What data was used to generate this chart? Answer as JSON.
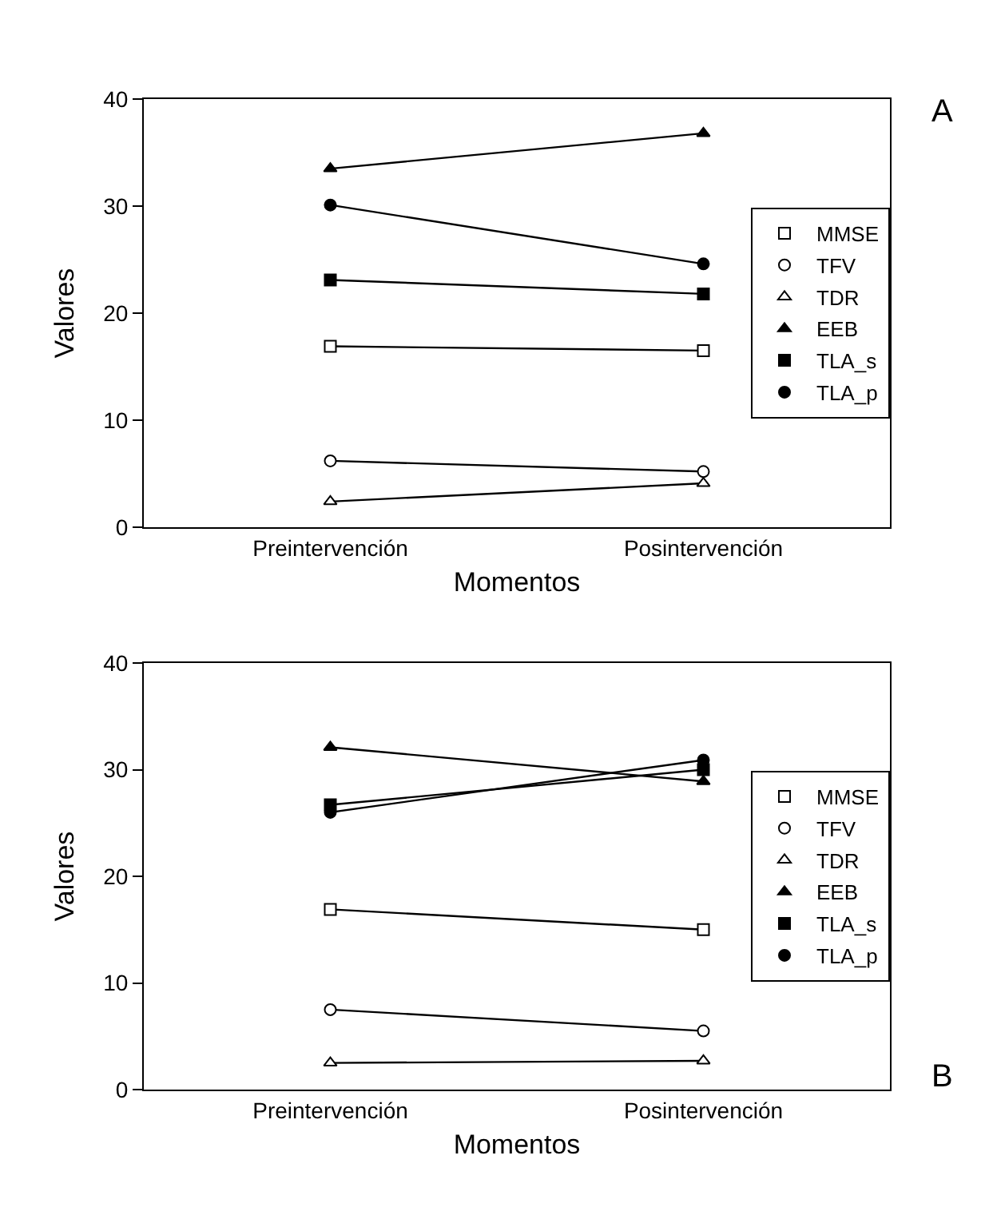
{
  "chart_data": [
    {
      "type": "line",
      "xlabel": "Momentos",
      "ylabel": "Valores",
      "categories": [
        "Preintervención",
        "Posintervención"
      ],
      "ylim": [
        0,
        40
      ],
      "yticks": [
        0,
        10,
        20,
        30,
        40
      ],
      "grid": false,
      "legend": "right",
      "annotations": [
        "A"
      ],
      "series": [
        {
          "name": "MMSE",
          "color": "#000000",
          "colors": [
            "#ffffff",
            "#ffffff"
          ],
          "marker": "square",
          "values": [
            16.9,
            16.5
          ]
        },
        {
          "name": "TFV",
          "color": "#000000",
          "colors": [
            "#ffffff",
            "#ffffff"
          ],
          "marker": "circle",
          "values": [
            6.2,
            5.2
          ]
        },
        {
          "name": "TDR",
          "color": "#000000",
          "colors": [
            "#ffffff",
            "#ffffff"
          ],
          "marker": "triangle",
          "values": [
            2.4,
            4.1
          ]
        },
        {
          "name": "EEB",
          "color": "#000000",
          "marker": "triangle",
          "values": [
            33.5,
            36.8
          ]
        },
        {
          "name": "TLA_s",
          "color": "#000000",
          "marker": "square",
          "values": [
            23.1,
            21.8
          ]
        },
        {
          "name": "TLA_p",
          "color": "#000000",
          "marker": "circle",
          "values": [
            30.1,
            24.6
          ]
        }
      ]
    },
    {
      "type": "line",
      "xlabel": "Momentos",
      "ylabel": "Valores",
      "categories": [
        "Preintervención",
        "Posintervención"
      ],
      "ylim": [
        0,
        40
      ],
      "yticks": [
        0,
        10,
        20,
        30,
        40
      ],
      "grid": false,
      "legend": "right",
      "annotations": [
        "B"
      ],
      "series": [
        {
          "name": "MMSE",
          "color": "#000000",
          "colors": [
            "#ffffff",
            "#ffffff"
          ],
          "marker": "square",
          "values": [
            16.9,
            15.0
          ]
        },
        {
          "name": "TFV",
          "color": "#000000",
          "colors": [
            "#ffffff",
            "#ffffff"
          ],
          "marker": "circle",
          "values": [
            7.5,
            5.5
          ]
        },
        {
          "name": "TDR",
          "color": "#000000",
          "colors": [
            "#ffffff",
            "#ffffff"
          ],
          "marker": "triangle",
          "values": [
            2.5,
            2.7
          ]
        },
        {
          "name": "EEB",
          "color": "#000000",
          "marker": "triangle",
          "values": [
            32.1,
            28.9
          ]
        },
        {
          "name": "TLA_s",
          "color": "#000000",
          "marker": "square",
          "values": [
            26.7,
            30.0
          ]
        },
        {
          "name": "TLA_p",
          "color": "#000000",
          "marker": "circle",
          "values": [
            26.0,
            30.9
          ]
        }
      ]
    }
  ]
}
